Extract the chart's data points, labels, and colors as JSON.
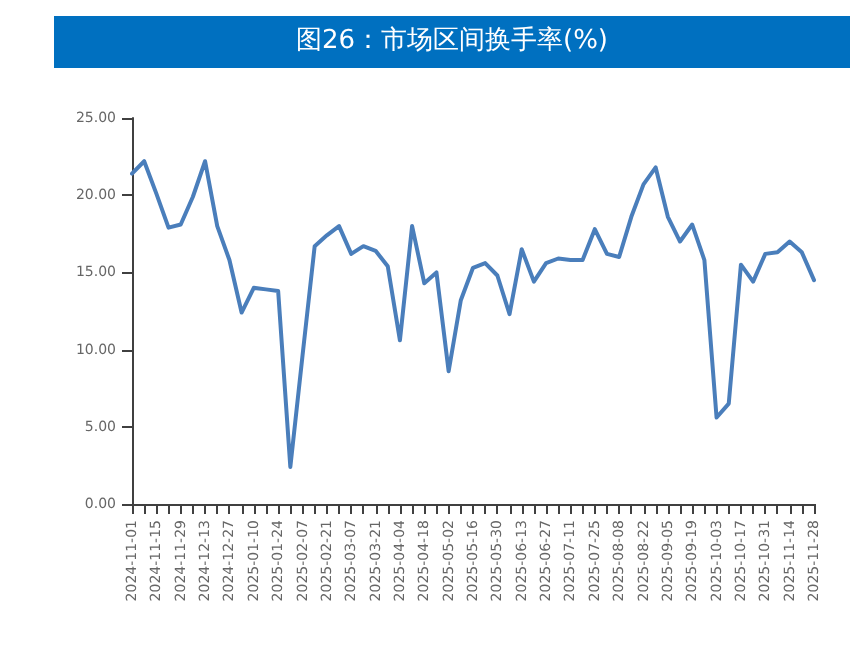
{
  "chart_data": {
    "type": "line",
    "title": "图26：市场区间换手率(%)",
    "categories": [
      "2024-11-01",
      null,
      "2024-11-15",
      null,
      "2024-11-29",
      null,
      "2024-12-13",
      null,
      "2024-12-27",
      null,
      "2025-01-10",
      null,
      "2025-01-24",
      null,
      "2025-02-07",
      null,
      "2025-02-21",
      null,
      "2025-03-07",
      null,
      "2025-03-21",
      null,
      "2025-04-04",
      null,
      "2025-04-18",
      null,
      "2025-05-02",
      null,
      "2025-05-16",
      null,
      "2025-05-30",
      null,
      "2025-06-13",
      null,
      "2025-06-27",
      null,
      "2025-07-11",
      null,
      "2025-07-25",
      null,
      "2025-08-08",
      null,
      "2025-08-22",
      null,
      "2025-09-05",
      null,
      "2025-09-19",
      null,
      "2025-10-03",
      null,
      "2025-10-17",
      null,
      "2025-10-31",
      null,
      "2025-11-14",
      null,
      "2025-11-28"
    ],
    "series": [
      {
        "color": "#4a7ebb",
        "values": [
          21.4,
          22.2,
          20.1,
          17.9,
          18.1,
          19.9,
          22.2,
          18.0,
          15.8,
          12.4,
          14.0,
          13.9,
          13.8,
          2.4,
          9.6,
          16.7,
          17.4,
          18.0,
          16.2,
          16.7,
          16.4,
          15.4,
          10.6,
          18.0,
          14.3,
          15.0,
          8.6,
          13.2,
          15.3,
          15.6,
          14.8,
          12.3,
          16.5,
          14.4,
          15.6,
          15.9,
          15.8,
          15.8,
          17.8,
          16.2,
          16.0,
          18.6,
          20.7,
          21.8,
          18.6,
          17.0,
          18.1,
          15.8,
          5.6,
          6.5,
          15.5,
          14.4,
          16.2,
          16.3,
          17.0,
          16.3,
          14.5
        ]
      }
    ],
    "ylim": [
      0,
      25
    ],
    "yticks": [
      {
        "value": 0,
        "label": "0.00"
      },
      {
        "value": 5,
        "label": "5.00"
      },
      {
        "value": 10,
        "label": "10.00"
      },
      {
        "value": 15,
        "label": "15.00"
      },
      {
        "value": 20,
        "label": "20.00"
      },
      {
        "value": 25,
        "label": "25.00"
      }
    ],
    "grid": false,
    "marker": "none",
    "line_style": "solid"
  }
}
